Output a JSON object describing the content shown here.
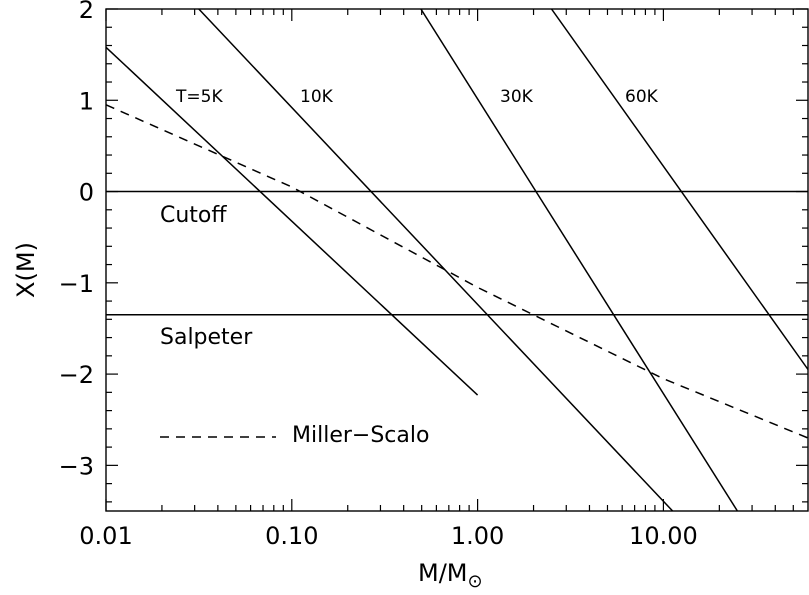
{
  "chart_data": {
    "type": "line",
    "xscale": "log",
    "xlim": [
      0.01,
      60
    ],
    "ylim": [
      -3.5,
      2
    ],
    "xlabel_main": "M/M",
    "xlabel_sub": "⊙",
    "ylabel": "X(M)",
    "xticks": [
      {
        "value": 0.01,
        "label": "0.01"
      },
      {
        "value": 0.1,
        "label": "0.10"
      },
      {
        "value": 1,
        "label": "1.00"
      },
      {
        "value": 10,
        "label": "10.00"
      }
    ],
    "yticks": [
      {
        "value": -3,
        "label": "−3"
      },
      {
        "value": -2,
        "label": "−2"
      },
      {
        "value": -1,
        "label": "−1"
      },
      {
        "value": 0,
        "label": "0"
      },
      {
        "value": 1,
        "label": "1"
      },
      {
        "value": 2,
        "label": "2"
      }
    ],
    "series": [
      {
        "name": "T=5K",
        "style": "solid",
        "x": [
          0.01,
          1.0
        ],
        "y": [
          1.58,
          -2.23
        ]
      },
      {
        "name": "10K",
        "style": "solid",
        "x": [
          0.0316,
          11.2
        ],
        "y": [
          2.0,
          -3.5
        ]
      },
      {
        "name": "30K",
        "style": "solid",
        "x": [
          0.495,
          25.0
        ],
        "y": [
          2.0,
          -3.5
        ]
      },
      {
        "name": "60K",
        "style": "solid",
        "x": [
          2.5,
          60.0
        ],
        "y": [
          2.0,
          -1.95
        ]
      },
      {
        "name": "Cutoff",
        "style": "solid",
        "x": [
          0.01,
          60.0
        ],
        "y": [
          0.0,
          0.0
        ]
      },
      {
        "name": "Salpeter",
        "style": "solid",
        "x": [
          0.01,
          60.0
        ],
        "y": [
          -1.35,
          -1.35
        ]
      },
      {
        "name": "Miller−Scalo",
        "style": "dashed",
        "x": [
          0.01,
          0.1,
          1.0,
          10.0,
          60.0
        ],
        "y": [
          0.95,
          0.05,
          -1.05,
          -2.05,
          -2.7
        ]
      }
    ],
    "annotations": {
      "t5": "T=5K",
      "t10": "10K",
      "t30": "30K",
      "t60": "60K",
      "cutoff": "Cutoff",
      "salpeter": "Salpeter",
      "miller": "Miller−Scalo"
    },
    "grid": false
  }
}
